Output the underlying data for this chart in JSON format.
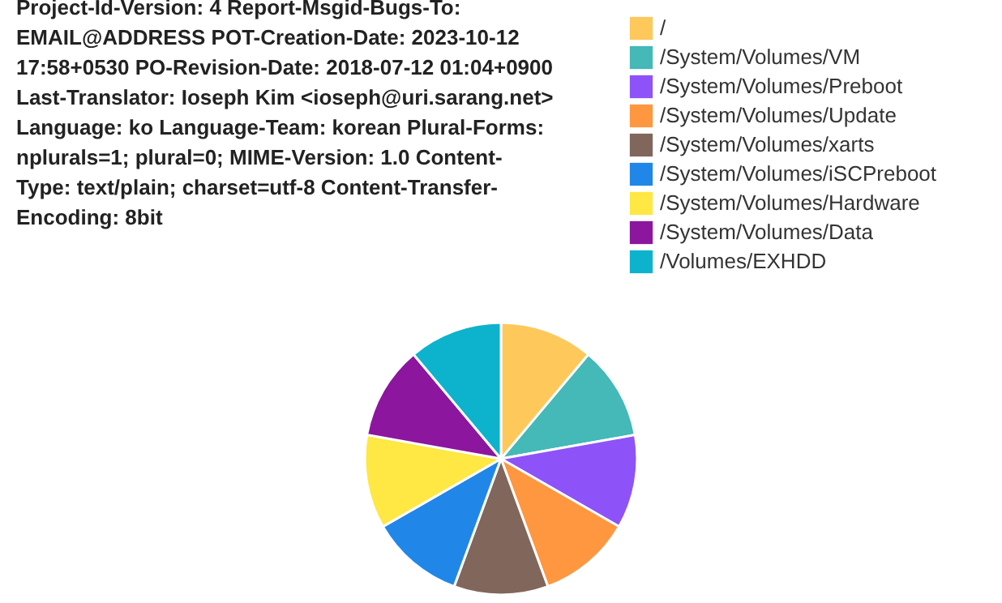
{
  "chart_data": {
    "type": "pie",
    "title": "Project-Id-Version: 4 Report-Msgid-Bugs-To: EMAIL@ADDRESS POT-Creation-Date: 2023-10-12 17:58+0530 PO-Revision-Date: 2018-07-12 01:04+0900 Last-Translator: Ioseph Kim <ioseph@uri.sarang.net> Language: ko Language-Team: korean Plural-Forms: nplurals=1; plural=0; MIME-Version: 1.0 Content-Type: text/plain; charset=utf-8 Content-Transfer-Encoding: 8bit",
    "categories": [
      "/",
      "/System/Volumes/VM",
      "/System/Volumes/Preboot",
      "/System/Volumes/Update",
      "/System/Volumes/xarts",
      "/System/Volumes/iSCPreboot",
      "/System/Volumes/Hardware",
      "/System/Volumes/Data",
      "/Volumes/EXHDD"
    ],
    "values": [
      11.1,
      11.1,
      11.1,
      11.1,
      11.2,
      11.1,
      11.1,
      11.1,
      11.1
    ],
    "colors": [
      "#fec85a",
      "#45b8b8",
      "#8e53f8",
      "#ff9740",
      "#80665b",
      "#2087e8",
      "#ffe744",
      "#8c169e",
      "#0db3cc"
    ],
    "legend": "top right"
  }
}
